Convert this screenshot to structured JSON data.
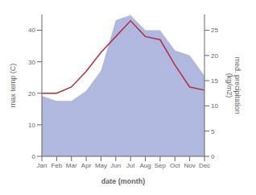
{
  "chart_data": {
    "type": "line",
    "categories": [
      "Jan",
      "Feb",
      "Mar",
      "Apr",
      "May",
      "Jun",
      "Jul",
      "Aug",
      "Sep",
      "Oct",
      "Nov",
      "Dec"
    ],
    "series": [
      {
        "type": "area",
        "color": "#b0b8e0",
        "axis": "y2",
        "values": [
          12,
          11,
          11,
          13,
          17,
          27,
          28,
          25,
          25,
          21,
          20,
          16
        ]
      },
      {
        "type": "line",
        "color": "#b03040",
        "values": [
          20,
          20,
          22,
          27,
          33,
          38,
          43,
          38,
          37,
          29,
          22,
          21
        ]
      }
    ],
    "xlabel": "date (month)",
    "ylabel": "max temp (C)",
    "y2label": "med. precipitation\n(kg/m2)",
    "ylim": [
      0,
      45
    ],
    "yticks": [
      0,
      10,
      20,
      30,
      40
    ],
    "y2lim": [
      0,
      28.125
    ],
    "y2ticks": [
      0,
      5,
      10,
      15,
      20,
      25
    ],
    "grid": false
  }
}
